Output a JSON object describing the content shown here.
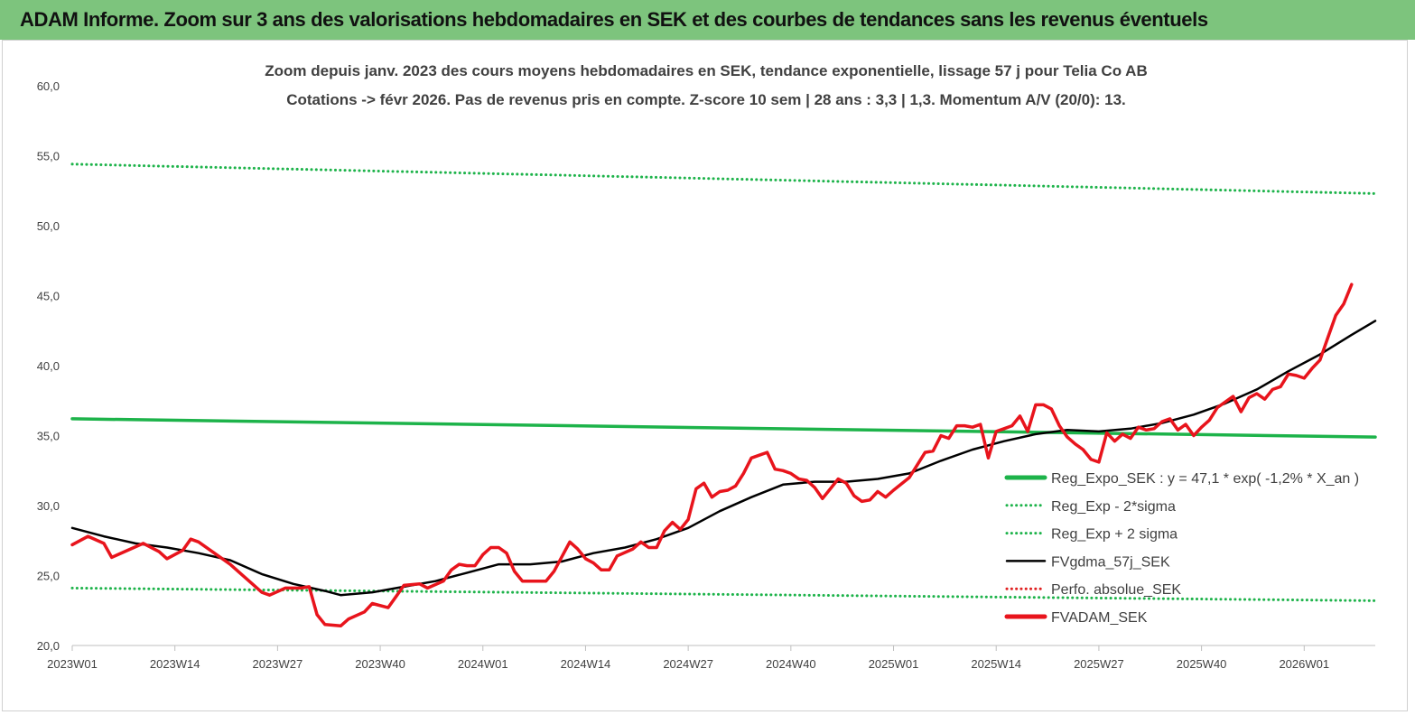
{
  "page": {
    "banner_title": "ADAM Informe. Zoom sur 3 ans des valorisations hebdomadaires en SEK et des courbes de tendances sans les revenus éventuels",
    "banner_color": "#7dc47d"
  },
  "chart_data": {
    "type": "line",
    "title_line1": "Zoom depuis janv. 2023 des cours moyens hebdomadaires en SEK, tendance exponentielle, lissage 57 j pour Telia Co AB",
    "title_line2": "Cotations -> févr 2026.  Pas de revenus pris en compte. Z-score 10 sem | 28 ans : 3,3 | 1,3. Momentum A/V (20/0): 13.",
    "ylim": [
      20,
      60
    ],
    "y_ticks": [
      "20,0",
      "25,0",
      "30,0",
      "35,0",
      "40,0",
      "45,0",
      "50,0",
      "55,0",
      "60,0"
    ],
    "x_week_count": 165,
    "x_ticks": [
      {
        "label": "2023W01",
        "week": 0
      },
      {
        "label": "2023W14",
        "week": 13
      },
      {
        "label": "2023W27",
        "week": 26
      },
      {
        "label": "2023W40",
        "week": 39
      },
      {
        "label": "2024W01",
        "week": 52
      },
      {
        "label": "2024W14",
        "week": 65
      },
      {
        "label": "2024W27",
        "week": 78
      },
      {
        "label": "2024W40",
        "week": 91
      },
      {
        "label": "2025W01",
        "week": 104
      },
      {
        "label": "2025W14",
        "week": 117
      },
      {
        "label": "2025W27",
        "week": 130
      },
      {
        "label": "2025W40",
        "week": 143
      },
      {
        "label": "2026W01",
        "week": 156
      }
    ],
    "grid": false,
    "legend_position": "right-middle",
    "series": [
      {
        "name": "Reg_Expo_SEK : y = 47,1 * exp( -1,2% *  X_an )",
        "color": "#1db34a",
        "style": "solid-thick",
        "points": [
          [
            0,
            36.2
          ],
          [
            165,
            34.9
          ]
        ]
      },
      {
        "name": "Reg_Exp - 2*sigma",
        "color": "#1db34a",
        "style": "dotted",
        "points": [
          [
            0,
            24.1
          ],
          [
            165,
            23.2
          ]
        ]
      },
      {
        "name": "Reg_Exp + 2 sigma",
        "color": "#1db34a",
        "style": "dotted",
        "points": [
          [
            0,
            54.4
          ],
          [
            165,
            52.3
          ]
        ]
      },
      {
        "name": "FVgdma_57j_SEK",
        "color": "#000000",
        "style": "solid",
        "points": [
          [
            0,
            28.4
          ],
          [
            4,
            27.8
          ],
          [
            8,
            27.3
          ],
          [
            12,
            27.0
          ],
          [
            16,
            26.6
          ],
          [
            20,
            26.1
          ],
          [
            24,
            25.1
          ],
          [
            28,
            24.4
          ],
          [
            32,
            23.9
          ],
          [
            34,
            23.6
          ],
          [
            38,
            23.8
          ],
          [
            42,
            24.2
          ],
          [
            46,
            24.6
          ],
          [
            50,
            25.2
          ],
          [
            54,
            25.8
          ],
          [
            58,
            25.8
          ],
          [
            62,
            26.0
          ],
          [
            66,
            26.6
          ],
          [
            70,
            27.0
          ],
          [
            74,
            27.6
          ],
          [
            78,
            28.4
          ],
          [
            82,
            29.6
          ],
          [
            86,
            30.6
          ],
          [
            90,
            31.5
          ],
          [
            94,
            31.7
          ],
          [
            98,
            31.7
          ],
          [
            102,
            31.9
          ],
          [
            106,
            32.3
          ],
          [
            110,
            33.2
          ],
          [
            114,
            34.0
          ],
          [
            118,
            34.6
          ],
          [
            122,
            35.1
          ],
          [
            126,
            35.4
          ],
          [
            130,
            35.3
          ],
          [
            134,
            35.5
          ],
          [
            138,
            35.9
          ],
          [
            142,
            36.5
          ],
          [
            146,
            37.3
          ],
          [
            150,
            38.3
          ],
          [
            154,
            39.6
          ],
          [
            158,
            40.8
          ],
          [
            162,
            42.2
          ],
          [
            165,
            43.2
          ]
        ]
      },
      {
        "name": "Perfo. absolue_SEK",
        "color": "#e02020",
        "style": "dotted",
        "points": []
      },
      {
        "name": "FVADAM_SEK",
        "color": "#e8141c",
        "style": "solid-thick",
        "points": [
          [
            0,
            27.2
          ],
          [
            2,
            27.8
          ],
          [
            4,
            27.3
          ],
          [
            5,
            26.3
          ],
          [
            7,
            26.8
          ],
          [
            9,
            27.3
          ],
          [
            11,
            26.7
          ],
          [
            12,
            26.2
          ],
          [
            14,
            26.8
          ],
          [
            15,
            27.6
          ],
          [
            16,
            27.4
          ],
          [
            18,
            26.6
          ],
          [
            20,
            25.8
          ],
          [
            22,
            24.8
          ],
          [
            24,
            23.8
          ],
          [
            25,
            23.6
          ],
          [
            27,
            24.1
          ],
          [
            29,
            24.1
          ],
          [
            30,
            24.2
          ],
          [
            31,
            22.2
          ],
          [
            32,
            21.5
          ],
          [
            34,
            21.4
          ],
          [
            35,
            21.9
          ],
          [
            37,
            22.4
          ],
          [
            38,
            23.0
          ],
          [
            40,
            22.7
          ],
          [
            41,
            23.5
          ],
          [
            42,
            24.3
          ],
          [
            44,
            24.4
          ],
          [
            45,
            24.1
          ],
          [
            47,
            24.6
          ],
          [
            48,
            25.4
          ],
          [
            49,
            25.8
          ],
          [
            50,
            25.7
          ],
          [
            51,
            25.7
          ],
          [
            52,
            26.5
          ],
          [
            53,
            27.0
          ],
          [
            54,
            27.0
          ],
          [
            55,
            26.6
          ],
          [
            56,
            25.3
          ],
          [
            57,
            24.6
          ],
          [
            58,
            24.6
          ],
          [
            60,
            24.6
          ],
          [
            61,
            25.3
          ],
          [
            63,
            27.4
          ],
          [
            64,
            26.9
          ],
          [
            65,
            26.2
          ],
          [
            66,
            25.9
          ],
          [
            67,
            25.4
          ],
          [
            68,
            25.4
          ],
          [
            69,
            26.4
          ],
          [
            71,
            26.9
          ],
          [
            72,
            27.4
          ],
          [
            73,
            27.0
          ],
          [
            74,
            27.0
          ],
          [
            75,
            28.2
          ],
          [
            76,
            28.8
          ],
          [
            77,
            28.3
          ],
          [
            78,
            29.0
          ],
          [
            79,
            31.2
          ],
          [
            80,
            31.6
          ],
          [
            81,
            30.6
          ],
          [
            82,
            31.0
          ],
          [
            83,
            31.1
          ],
          [
            84,
            31.4
          ],
          [
            85,
            32.3
          ],
          [
            86,
            33.4
          ],
          [
            87,
            33.6
          ],
          [
            88,
            33.8
          ],
          [
            89,
            32.6
          ],
          [
            90,
            32.5
          ],
          [
            91,
            32.3
          ],
          [
            92,
            31.9
          ],
          [
            93,
            31.8
          ],
          [
            94,
            31.3
          ],
          [
            95,
            30.5
          ],
          [
            96,
            31.2
          ],
          [
            97,
            31.9
          ],
          [
            98,
            31.6
          ],
          [
            99,
            30.7
          ],
          [
            100,
            30.3
          ],
          [
            101,
            30.4
          ],
          [
            102,
            31.0
          ],
          [
            103,
            30.6
          ],
          [
            104,
            31.1
          ],
          [
            106,
            32.0
          ],
          [
            108,
            33.8
          ],
          [
            109,
            33.9
          ],
          [
            110,
            35.0
          ],
          [
            111,
            34.8
          ],
          [
            112,
            35.7
          ],
          [
            113,
            35.7
          ],
          [
            114,
            35.6
          ],
          [
            115,
            35.8
          ],
          [
            116,
            33.4
          ],
          [
            117,
            35.3
          ],
          [
            118,
            35.5
          ],
          [
            119,
            35.7
          ],
          [
            120,
            36.4
          ],
          [
            121,
            35.3
          ],
          [
            122,
            37.2
          ],
          [
            123,
            37.2
          ],
          [
            124,
            36.9
          ],
          [
            125,
            35.7
          ],
          [
            126,
            34.9
          ],
          [
            127,
            34.4
          ],
          [
            128,
            34.0
          ],
          [
            129,
            33.3
          ],
          [
            130,
            33.1
          ],
          [
            131,
            35.2
          ],
          [
            132,
            34.6
          ],
          [
            133,
            35.1
          ],
          [
            134,
            34.8
          ],
          [
            135,
            35.6
          ],
          [
            136,
            35.4
          ],
          [
            137,
            35.5
          ],
          [
            138,
            36.0
          ],
          [
            139,
            36.2
          ],
          [
            140,
            35.4
          ],
          [
            141,
            35.8
          ],
          [
            142,
            35.0
          ],
          [
            143,
            35.6
          ],
          [
            144,
            36.1
          ],
          [
            145,
            37.0
          ],
          [
            146,
            37.4
          ],
          [
            147,
            37.8
          ],
          [
            148,
            36.7
          ],
          [
            149,
            37.7
          ],
          [
            150,
            38.0
          ],
          [
            151,
            37.6
          ],
          [
            152,
            38.3
          ],
          [
            153,
            38.5
          ],
          [
            154,
            39.4
          ],
          [
            155,
            39.3
          ],
          [
            156,
            39.1
          ],
          [
            157,
            39.8
          ],
          [
            158,
            40.4
          ],
          [
            159,
            42.0
          ],
          [
            160,
            43.6
          ],
          [
            161,
            44.4
          ],
          [
            162,
            45.8
          ]
        ]
      }
    ]
  }
}
